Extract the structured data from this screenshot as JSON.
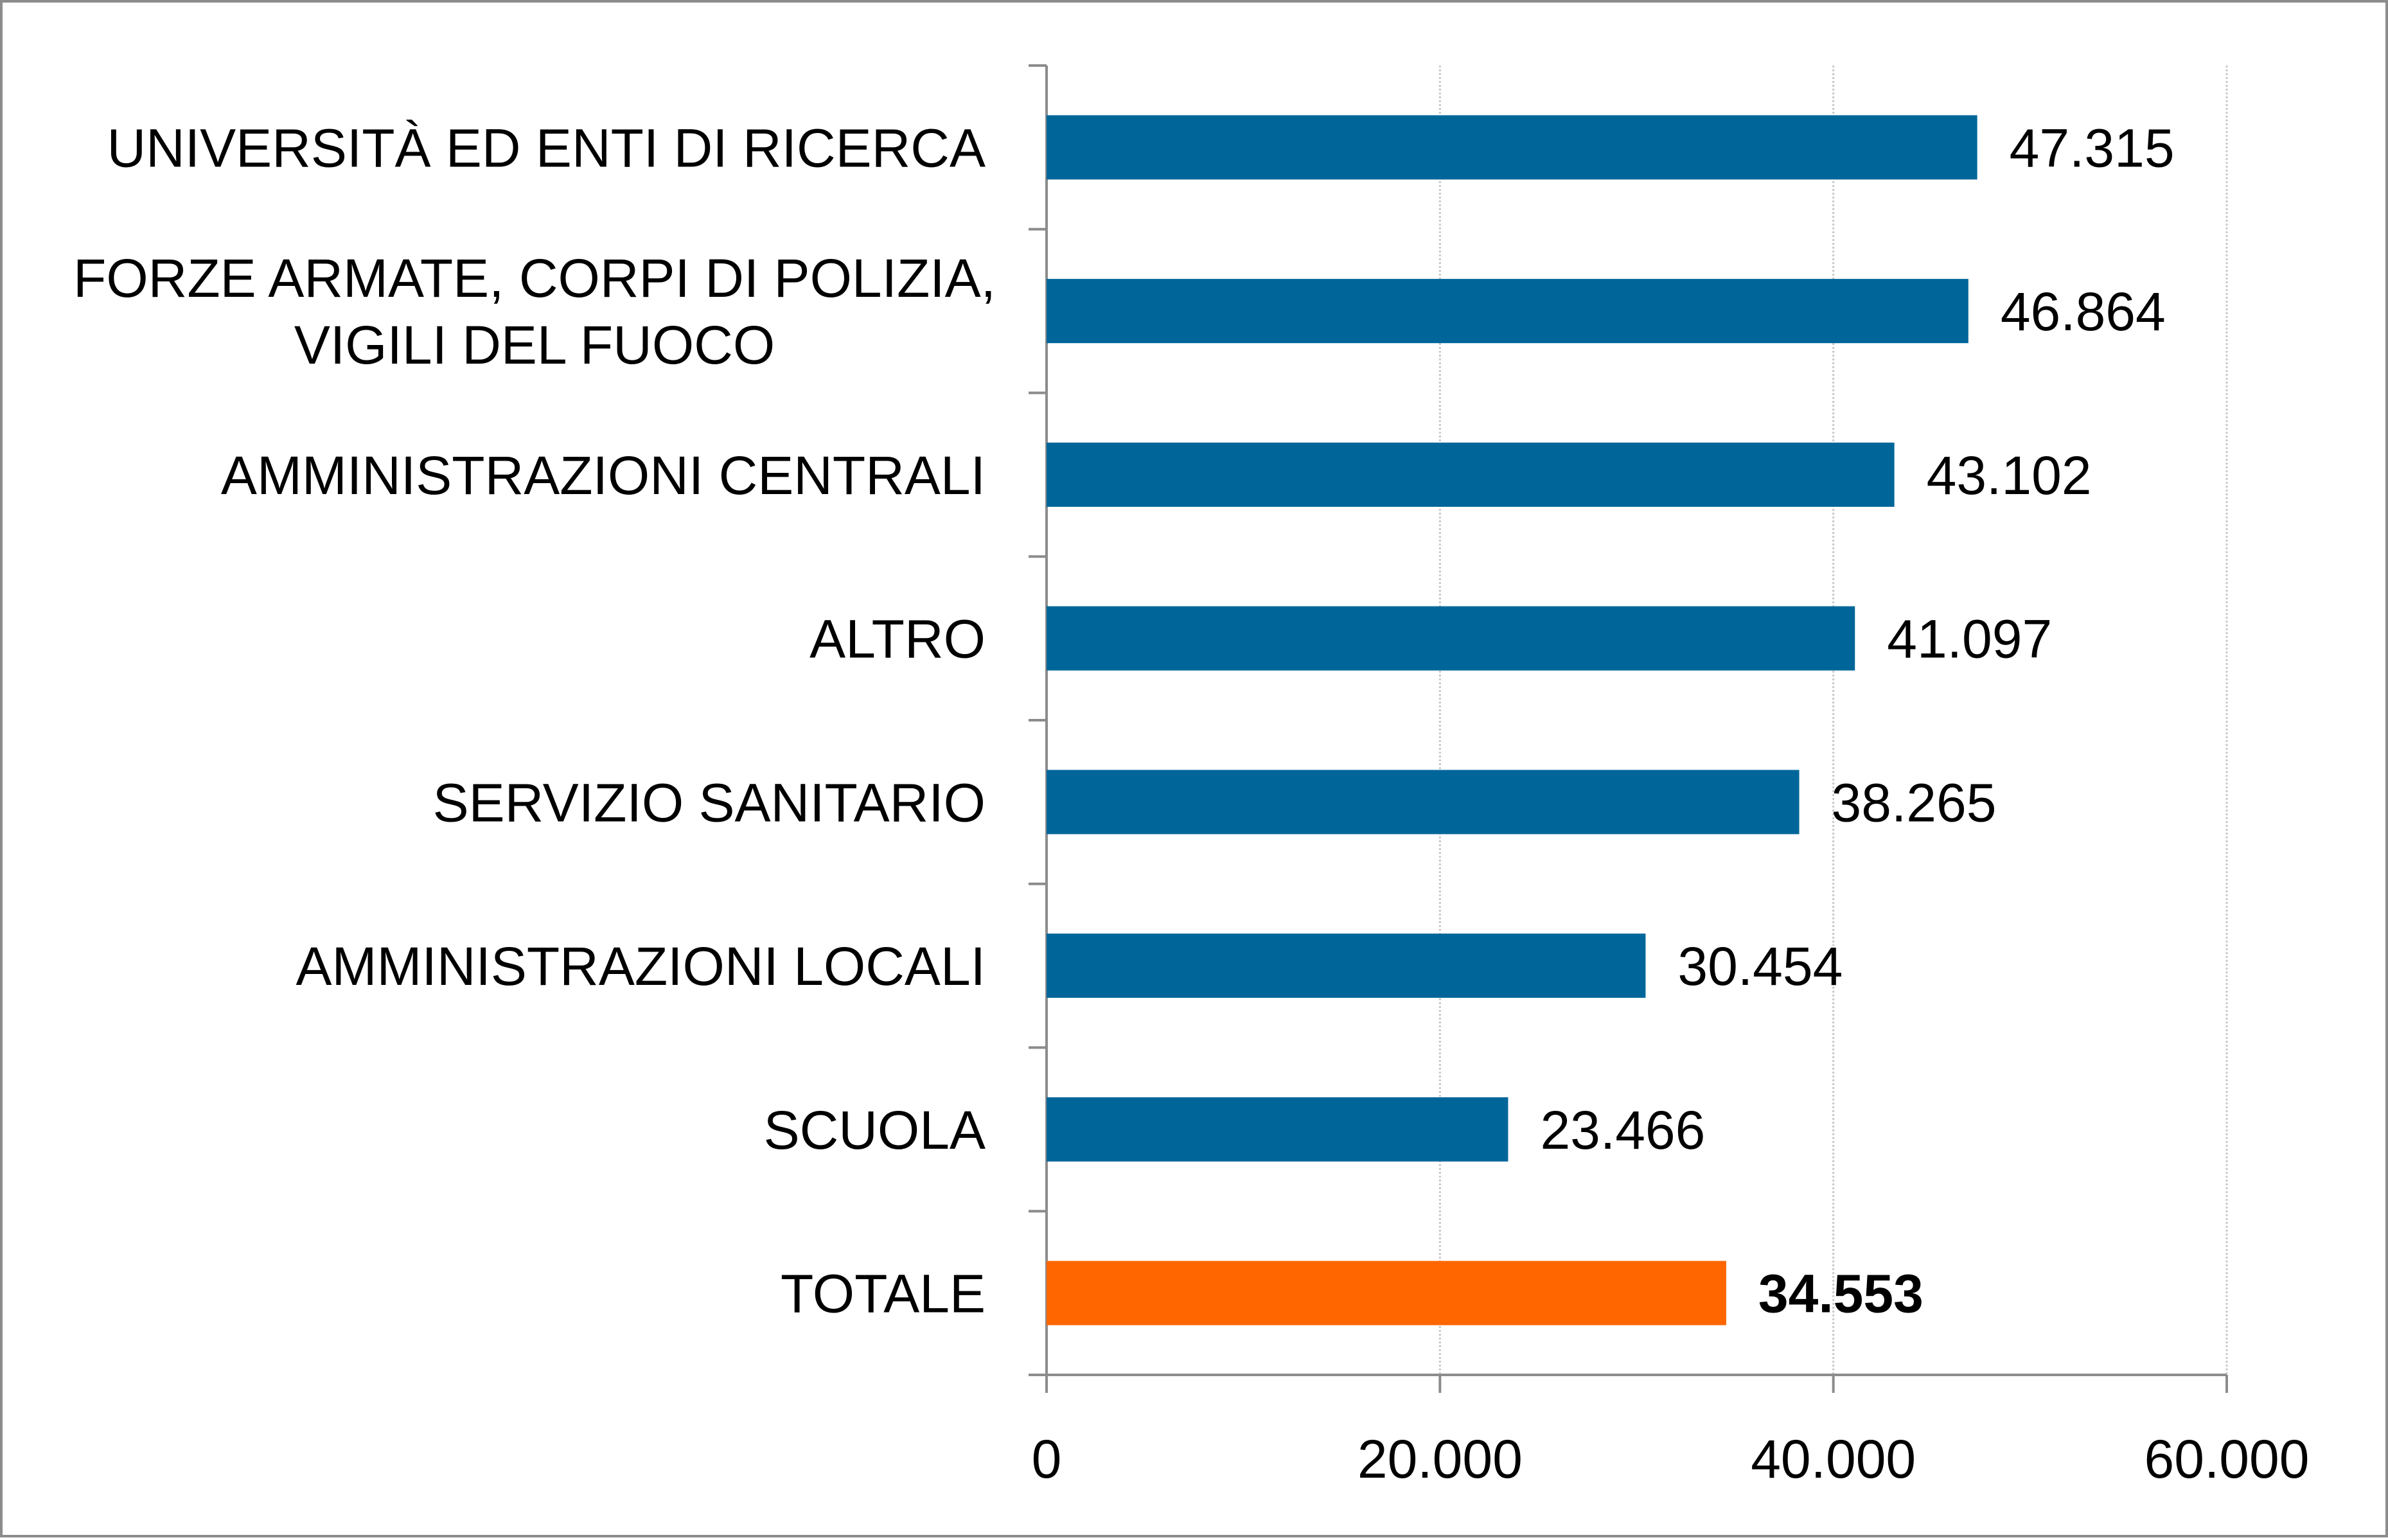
{
  "chart_data": {
    "type": "bar",
    "orientation": "horizontal",
    "title": "",
    "xlabel": "",
    "ylabel": "",
    "xlim": [
      0,
      60000
    ],
    "x_ticks": [
      0,
      20000,
      40000,
      60000
    ],
    "x_tick_labels": [
      "0",
      "20.000",
      "40.000",
      "60.000"
    ],
    "grid": "vertical",
    "legend": "none",
    "categories": [
      [
        "UNIVERSITÀ ED ENTI DI RICERCA"
      ],
      [
        "FORZE ARMATE, CORPI DI POLIZIA,",
        "VIGILI DEL FUOCO"
      ],
      [
        "AMMINISTRAZIONI CENTRALI"
      ],
      [
        "ALTRO"
      ],
      [
        "SERVIZIO SANITARIO"
      ],
      [
        "AMMINISTRAZIONI LOCALI"
      ],
      [
        "SCUOLA"
      ],
      [
        "TOTALE"
      ]
    ],
    "values": [
      47315,
      46864,
      43102,
      41097,
      38265,
      30454,
      23466,
      34553
    ],
    "value_labels": [
      "47.315",
      "46.864",
      "43.102",
      "41.097",
      "38.265",
      "30.454",
      "23.466",
      "34.553"
    ],
    "bold_value_label": [
      false,
      false,
      false,
      false,
      false,
      false,
      false,
      true
    ],
    "bar_colors": [
      "#006699",
      "#006699",
      "#006699",
      "#006699",
      "#006699",
      "#006699",
      "#006699",
      "#ff6600"
    ]
  },
  "colors": {
    "bar": "#006699",
    "highlight_bar": "#ff6600",
    "axis": "#8c8c8c",
    "grid": "#c8c8c8"
  }
}
